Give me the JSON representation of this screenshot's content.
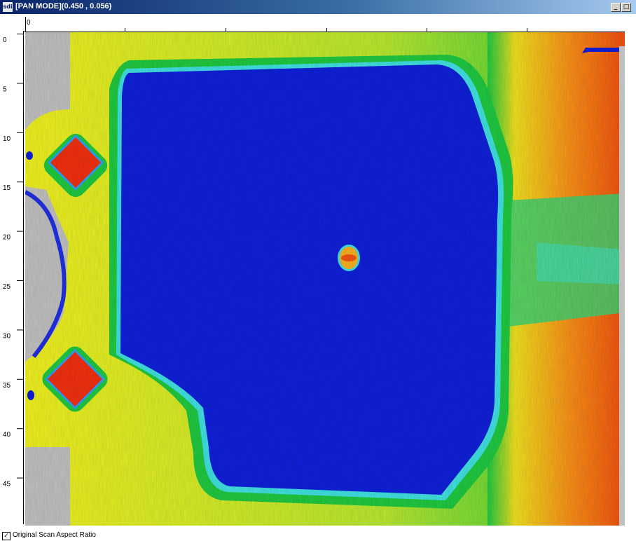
{
  "window": {
    "title": "[PAN MODE](0.450 , 0.056)",
    "app_icon": "sdi",
    "buttons": {
      "minimize": "_",
      "maximize": "□"
    }
  },
  "rulers": {
    "horizontal_origin": "0",
    "vertical_labels": [
      "0",
      "5",
      "10",
      "15",
      "20",
      "25",
      "30",
      "35",
      "40",
      "45"
    ]
  },
  "scan": {
    "icon": "ultrasonic-c-scan-image",
    "colors": {
      "background_gray": "#c0c0c0",
      "deep_blue": "#1020d8",
      "cyan": "#40e0e0",
      "green": "#10c840",
      "yellow": "#f0f020",
      "orange": "#f89018",
      "red": "#f03010"
    }
  },
  "footer": {
    "checkbox_checked": true,
    "checkbox_mark": "✓",
    "checkbox_label": "Original Scan Aspect Ratio"
  }
}
